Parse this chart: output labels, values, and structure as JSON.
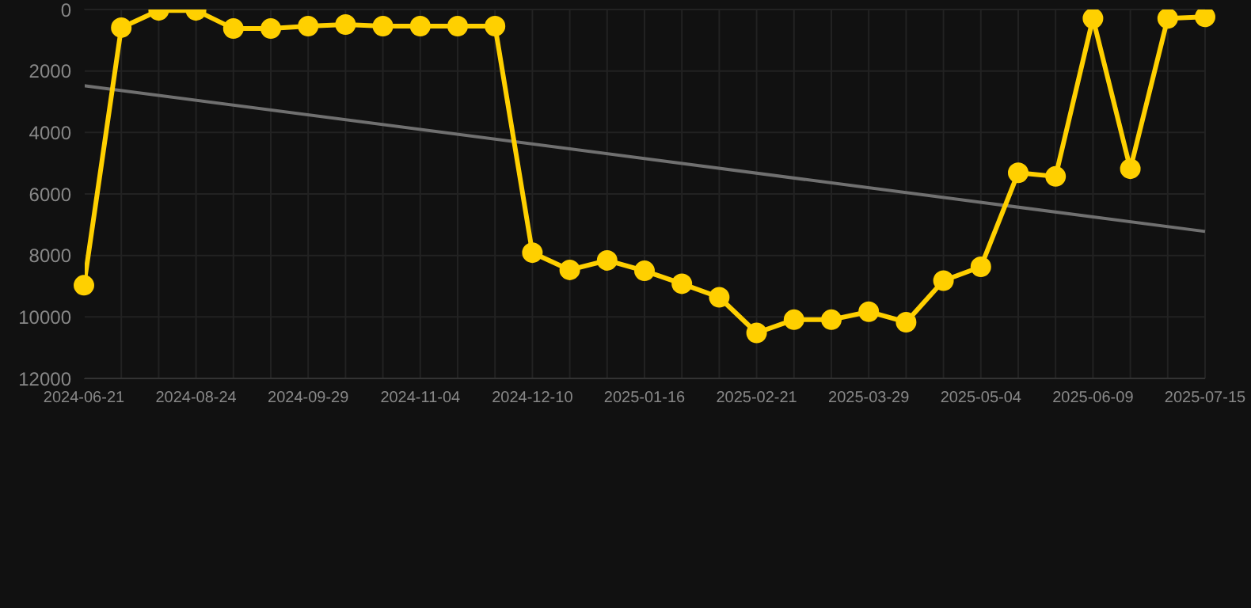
{
  "chart_data": {
    "type": "line",
    "categories": [
      "2024-06-21",
      null,
      null,
      "2024-08-24",
      null,
      null,
      "2024-09-29",
      null,
      null,
      "2024-11-04",
      null,
      null,
      "2024-12-10",
      null,
      null,
      "2025-01-16",
      null,
      null,
      "2025-02-21",
      null,
      null,
      "2025-03-29",
      null,
      null,
      "2025-05-04",
      null,
      null,
      "2025-06-09",
      null,
      null,
      "2025-07-15"
    ],
    "series": [
      {
        "color": "#ffd000",
        "marker": "circle",
        "values": [
          8970,
          590,
          30,
          30,
          620,
          620,
          540,
          490,
          540,
          540,
          540,
          540,
          7910,
          8470,
          8160,
          8500,
          8920,
          9360,
          10520,
          10090,
          10090,
          9830,
          10170,
          8820,
          8370,
          5310,
          5430,
          290,
          5180,
          290,
          240
        ]
      },
      {
        "type": "line",
        "color": "#707070",
        "marker": "none",
        "values": [
          2480,
          null,
          null,
          null,
          null,
          null,
          null,
          null,
          null,
          null,
          null,
          null,
          null,
          null,
          null,
          null,
          null,
          null,
          null,
          null,
          null,
          null,
          null,
          null,
          null,
          null,
          null,
          null,
          null,
          null,
          7220
        ]
      }
    ],
    "ylim": [
      12000,
      0
    ],
    "yticks": [
      0,
      2000,
      4000,
      6000,
      8000,
      10000,
      12000
    ],
    "grid": true
  }
}
